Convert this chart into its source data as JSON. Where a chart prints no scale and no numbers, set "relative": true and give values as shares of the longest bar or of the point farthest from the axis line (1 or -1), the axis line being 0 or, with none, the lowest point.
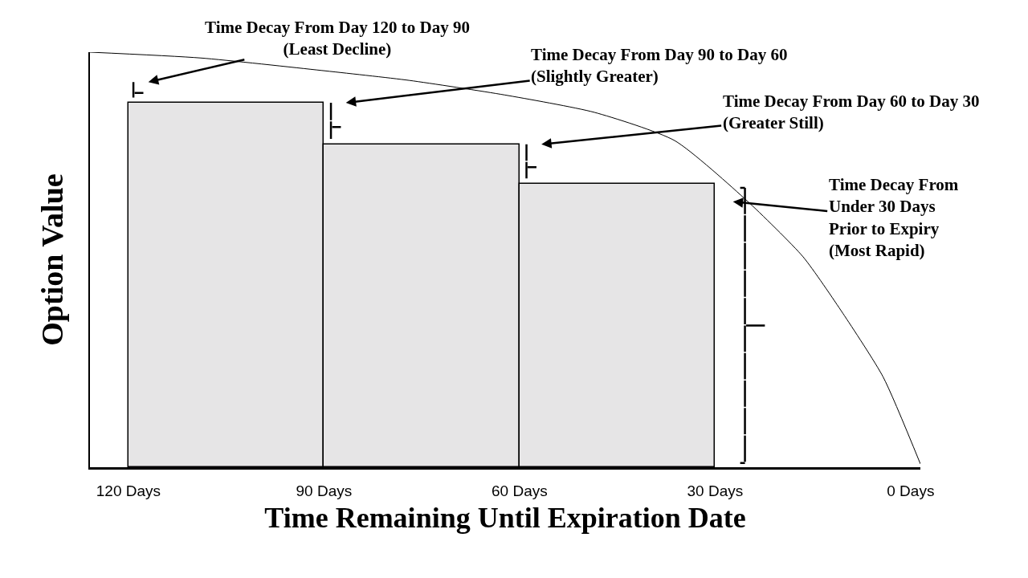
{
  "chart_data": {
    "type": "histogram",
    "relative": true,
    "bins": [
      120,
      90,
      60,
      30
    ],
    "values": [
      0.878,
      0.778,
      0.683
    ],
    "color": "#e6e5e6",
    "series": [
      {
        "type": "line",
        "color": "#000000",
        "x": [
          125.9,
          108.9,
          90.4,
          76.9,
          62.3,
          48.5,
          36.2,
          25.1,
          16.5,
          10.4,
          4.2,
          -1.5
        ],
        "values": [
          1.0,
          0.986,
          0.956,
          0.932,
          0.897,
          0.855,
          0.787,
          0.642,
          0.507,
          0.371,
          0.217,
          0.008
        ]
      }
    ],
    "xlim": [
      125.9,
      -1.5
    ],
    "xticks": [
      {
        "value": 120,
        "label": "120 Days"
      },
      {
        "value": 90,
        "label": "90 Days"
      },
      {
        "value": 60,
        "label": "60 Days"
      },
      {
        "value": 30,
        "label": "30 Days"
      },
      {
        "value": 0,
        "label": "0 Days"
      }
    ],
    "xlabel": "Time Remaining Until Expiration Date",
    "ylabel": "Option Value",
    "annotations": [
      "Time Decay From Day 120 to Day 90\n(Least Decline)",
      "Time Decay From Day 90 to Day 60\n(Slightly Greater)",
      "Time Decay From Day 60 to Day 30\n(Greater Still)",
      "Time Decay From\nUnder 30 Days\nPrior to Expiry\n(Most Rapid)"
    ]
  }
}
